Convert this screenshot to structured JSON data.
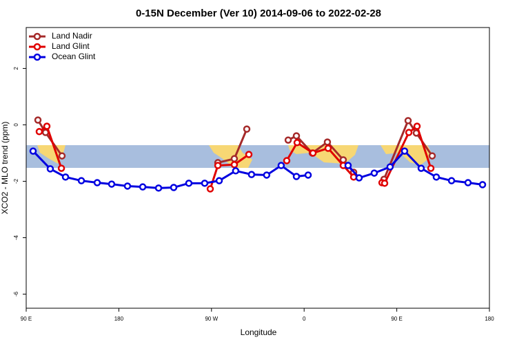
{
  "chart_data": {
    "type": "line",
    "title": "0-15N December (Ver 10)   2014-09-06 to 2022-02-28",
    "x_label": "Longitude",
    "y_label": "XCO2 - MLO trend (ppm)",
    "xlim": [
      90,
      540
    ],
    "ylim": [
      -6.5,
      3.45
    ],
    "xticks": [
      {
        "value": 90,
        "label": "90 E"
      },
      {
        "value": 180,
        "label": "180"
      },
      {
        "value": 270,
        "label": "90 W"
      },
      {
        "value": 360,
        "label": "0"
      },
      {
        "value": 450,
        "label": "90 E"
      },
      {
        "value": 540,
        "label": "180"
      }
    ],
    "yticks": [
      2,
      0,
      -2,
      -4,
      -6
    ],
    "legend": "top-left",
    "series": [
      {
        "name": "Land Nadir",
        "color": "#a52a2a",
        "x": [
          101.4,
          108.8,
          124.8,
          null,
          276.2,
          292.2,
          304.3,
          null,
          344.5,
          352.5,
          367.9,
          382.6,
          398.0,
          408.1,
          null,
          437.6,
          461.0,
          469.0,
          484.4
        ],
        "values": [
          0.17,
          -0.27,
          -1.1,
          null,
          -1.34,
          -1.2,
          -0.15,
          null,
          -0.54,
          -0.39,
          -1.0,
          -0.61,
          -1.24,
          -1.68,
          null,
          -1.93,
          0.15,
          -0.29,
          -1.1
        ]
      },
      {
        "name": "Land Glint",
        "color": "#e00000",
        "x": [
          102.7,
          110.1,
          124.2,
          null,
          268.8,
          276.2,
          292.2,
          306.3,
          null,
          343.1,
          353.2,
          368.6,
          383.3,
          398.0,
          408.1,
          null,
          435.6,
          438.2,
          461.7,
          469.7,
          483.1
        ],
        "values": [
          -0.24,
          -0.05,
          -1.54,
          null,
          -2.27,
          -1.44,
          -1.41,
          -1.05,
          null,
          -1.27,
          -0.63,
          -1.0,
          -0.83,
          -1.44,
          -1.85,
          null,
          -2.05,
          -2.07,
          -0.27,
          -0.05,
          -1.54
        ]
      },
      {
        "name": "Ocean Glint",
        "color": "#0000e0",
        "x": [
          96.7,
          113.4,
          128.2,
          143.6,
          159.0,
          173.0,
          188.4,
          203.2,
          218.6,
          233.3,
          248.0,
          263.4,
          277.5,
          293.5,
          308.9,
          323.6,
          337.7,
          352.5,
          363.9,
          null,
          402.7,
          413.4,
          428.1,
          443.5,
          457.6,
          473.7,
          488.4,
          503.2,
          519.2,
          533.3
        ],
        "values": [
          -0.93,
          -1.56,
          -1.85,
          -1.98,
          -2.05,
          -2.1,
          -2.17,
          -2.2,
          -2.24,
          -2.22,
          -2.07,
          -2.07,
          -1.98,
          -1.63,
          -1.76,
          -1.78,
          -1.44,
          -1.83,
          -1.78,
          null,
          -1.44,
          -1.88,
          -1.71,
          -1.49,
          -0.93,
          -1.54,
          -1.85,
          -1.98,
          -2.05,
          -2.12
        ]
      }
    ]
  }
}
